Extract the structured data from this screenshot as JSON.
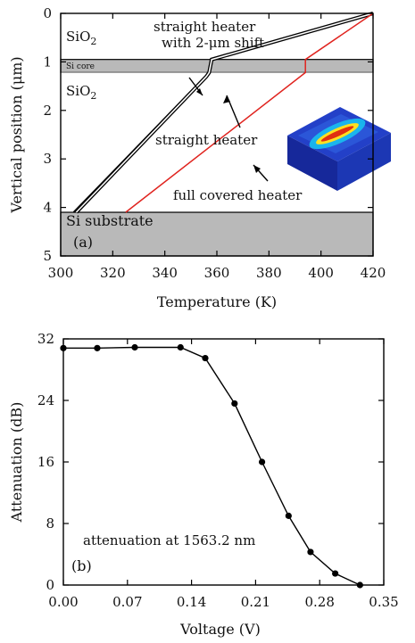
{
  "chart_data": [
    {
      "type": "line",
      "panel_label": "(a)",
      "xlabel": "Temperature (K)",
      "ylabel": "Vertical position (μm)",
      "xlim": [
        300,
        420
      ],
      "ylim": [
        0,
        5
      ],
      "y_inverted": true,
      "xticks": [
        "300",
        "320",
        "340",
        "360",
        "380",
        "400",
        "420"
      ],
      "yticks": [
        "0",
        "1",
        "2",
        "3",
        "4",
        "5"
      ],
      "layers": [
        {
          "label_main": "SiO",
          "label_sub": "2",
          "y_from": 0,
          "y_to": 0.95,
          "fill": "#ffffff"
        },
        {
          "label_main": "Si core",
          "label_sub": "",
          "y_from": 0.95,
          "y_to": 1.22,
          "fill": "#b9b9b9"
        },
        {
          "label_main": "SiO",
          "label_sub": "2",
          "y_from": 1.22,
          "y_to": 4.1,
          "fill": "#ffffff"
        },
        {
          "label_main": "Si substrate",
          "label_sub": "",
          "y_from": 4.1,
          "y_to": 5,
          "fill": "#b9b9b9"
        }
      ],
      "series": [
        {
          "style": "black",
          "color": "#000000",
          "x": [
            305,
            357,
            358,
            420
          ],
          "y": [
            4.1,
            1.22,
            0.95,
            0
          ]
        },
        {
          "style": "double-outline",
          "color": "#000000",
          "x": [
            306,
            356,
            357,
            358,
            420
          ],
          "y": [
            4.1,
            1.3,
            1.22,
            0.95,
            0
          ]
        },
        {
          "style": "red",
          "color": "#e0241f",
          "x": [
            325,
            394,
            394,
            420
          ],
          "y": [
            4.1,
            1.22,
            0.95,
            0
          ]
        }
      ],
      "annotations": [
        {
          "text_line1": "straight heater",
          "text_line2": "with 2-μm shift"
        },
        {
          "text": "straight heater"
        },
        {
          "text": "full covered heater"
        }
      ],
      "inset": {
        "icon": "heater-simulation-3d-icon",
        "colors": [
          "#1b2ea0",
          "#2f5fe0",
          "#18c0f0",
          "#ffe020",
          "#e03010"
        ]
      }
    },
    {
      "type": "line",
      "panel_label": "(b)",
      "xlabel": "Voltage (V)",
      "ylabel": "Attenuation (dB)",
      "annotation": "attenuation at 1563.2 nm",
      "xlim": [
        0,
        0.35
      ],
      "ylim": [
        0,
        32
      ],
      "xticks": [
        "0.00",
        "0.07",
        "0.14",
        "0.21",
        "0.28",
        "0.35"
      ],
      "yticks": [
        "0",
        "8",
        "16",
        "24",
        "32"
      ],
      "series": [
        {
          "marker": "circle",
          "color": "#000000",
          "x": [
            0.0,
            0.037,
            0.078,
            0.128,
            0.155,
            0.187,
            0.217,
            0.246,
            0.27,
            0.297,
            0.324
          ],
          "y": [
            30.8,
            30.8,
            30.9,
            30.9,
            29.5,
            23.6,
            16.0,
            9.0,
            4.3,
            1.5,
            0.0
          ]
        }
      ]
    }
  ]
}
